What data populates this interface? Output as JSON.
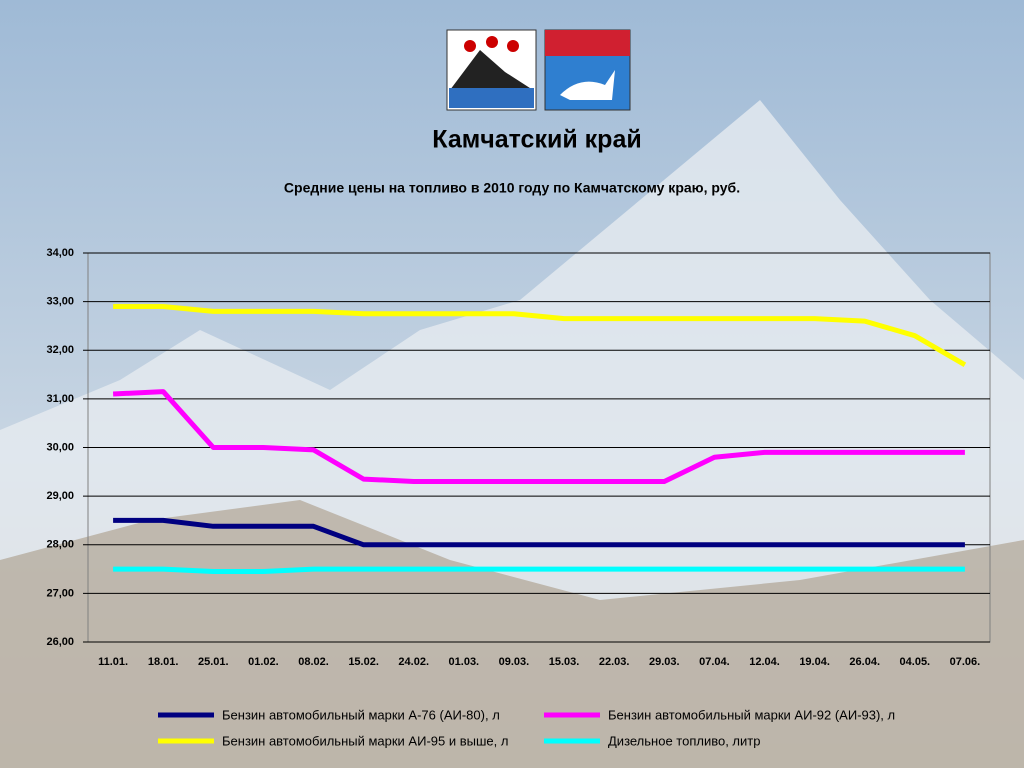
{
  "chart_data": {
    "type": "line",
    "title": "Камчатский край",
    "subtitle": "Средние цены на топливо в 2010 году по Камчатскому краю, руб.",
    "categories": [
      "11.01.",
      "18.01.",
      "25.01.",
      "01.02.",
      "08.02.",
      "15.02.",
      "24.02.",
      "01.03.",
      "09.03.",
      "15.03.",
      "22.03.",
      "29.03.",
      "07.04.",
      "12.04.",
      "19.04.",
      "26.04.",
      "04.05.",
      "07.06."
    ],
    "series": [
      {
        "name": "Бензин автомобильный марки А-76 (АИ-80), л",
        "color": "#000080",
        "values": [
          28.5,
          28.5,
          28.38,
          28.38,
          28.38,
          28.0,
          28.0,
          28.0,
          28.0,
          28.0,
          28.0,
          28.0,
          28.0,
          28.0,
          28.0,
          28.0,
          28.0,
          28.0
        ]
      },
      {
        "name": "Бензин автомобильный марки АИ-92 (АИ-93), л",
        "color": "#ff00ff",
        "values": [
          31.1,
          31.15,
          30.0,
          30.0,
          29.95,
          29.35,
          29.3,
          29.3,
          29.3,
          29.3,
          29.3,
          29.3,
          29.8,
          29.9,
          29.9,
          29.9,
          29.9,
          29.9
        ]
      },
      {
        "name": "Бензин автомобильный марки АИ-95 и выше, л",
        "color": "#ffff00",
        "values": [
          32.9,
          32.9,
          32.8,
          32.8,
          32.8,
          32.75,
          32.75,
          32.75,
          32.75,
          32.65,
          32.65,
          32.65,
          32.65,
          32.65,
          32.65,
          32.6,
          32.3,
          31.7
        ]
      },
      {
        "name": "Дизельное топливо, литр",
        "color": "#00ffff",
        "values": [
          27.5,
          27.5,
          27.45,
          27.45,
          27.5,
          27.5,
          27.5,
          27.5,
          27.5,
          27.5,
          27.5,
          27.5,
          27.5,
          27.5,
          27.5,
          27.5,
          27.5,
          27.5
        ]
      }
    ],
    "ylim": [
      26,
      34
    ],
    "yticks": [
      {
        "value": 26,
        "label": "26,00"
      },
      {
        "value": 27,
        "label": "27,00"
      },
      {
        "value": 28,
        "label": "28,00"
      },
      {
        "value": 29,
        "label": "29,00"
      },
      {
        "value": 30,
        "label": "30,00"
      },
      {
        "value": 31,
        "label": "31,00"
      },
      {
        "value": 32,
        "label": "32,00"
      },
      {
        "value": 33,
        "label": "33,00"
      },
      {
        "value": 34,
        "label": "34,00"
      }
    ],
    "grid": true
  }
}
